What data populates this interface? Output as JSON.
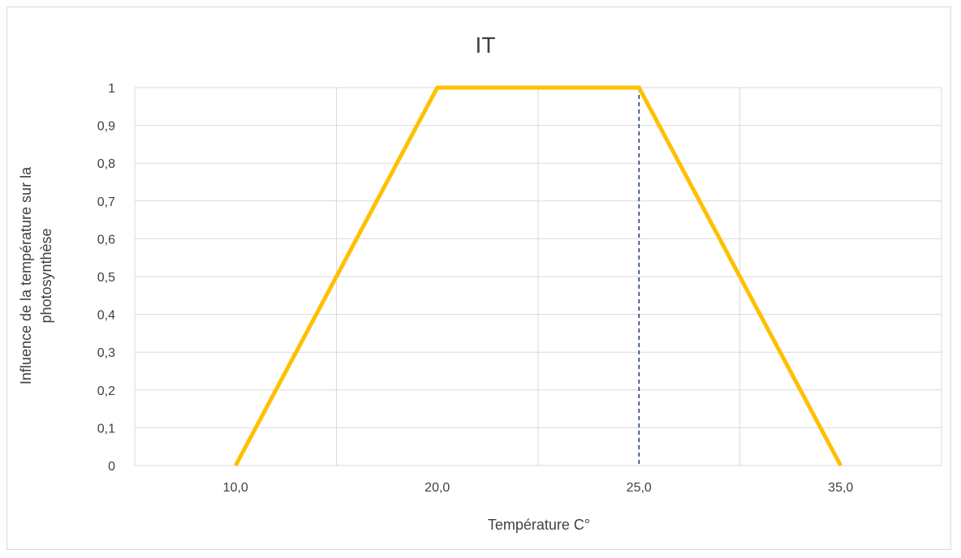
{
  "chart_data": {
    "type": "line",
    "title": "IT",
    "xlabel": "Température C°",
    "ylabel_line1": "Influence de la température sur la",
    "ylabel_line2": "photosynthèse",
    "x_categories": [
      "10,0",
      "20,0",
      "25,0",
      "35,0"
    ],
    "ylim": [
      0,
      1
    ],
    "y_ticks": [
      "0",
      "0,1",
      "0,2",
      "0,3",
      "0,4",
      "0,5",
      "0,6",
      "0,7",
      "0,8",
      "0,9",
      "1"
    ],
    "series": [
      {
        "x": [
          "10,0",
          "20,0",
          "25,0",
          "35,0"
        ],
        "values": [
          0,
          1,
          1,
          0
        ]
      }
    ],
    "reference_line": {
      "x": "25,0",
      "style": "dashed"
    },
    "grid": true,
    "colors": {
      "series": "#FFC000",
      "reference_line": "#1F3864",
      "grid": "#d9d9d9"
    }
  }
}
